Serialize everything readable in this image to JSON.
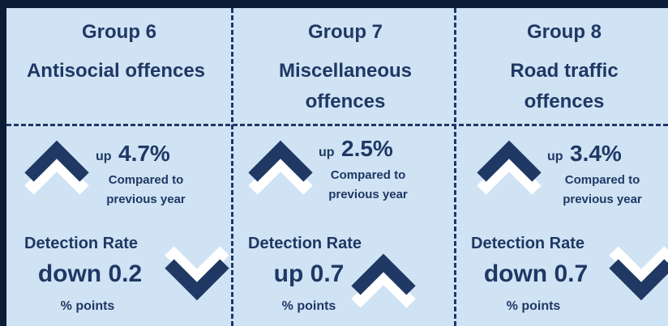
{
  "groups": [
    {
      "group": "Group 6",
      "title": [
        "Antisocial offences"
      ],
      "change_direction": "up",
      "change": "4.7%",
      "comparison": [
        "Compared to",
        "previous year"
      ],
      "detection_label": "Detection Rate",
      "detection_change": "down 0.2",
      "detection_unit": "% points"
    },
    {
      "group": "Group 7",
      "title": [
        "Miscellaneous",
        "offences"
      ],
      "change_direction": "up",
      "change": "2.5%",
      "comparison": [
        "Compared to",
        "previous year"
      ],
      "detection_label": "Detection Rate",
      "detection_change": "up 0.7",
      "detection_unit": "% points"
    },
    {
      "group": "Group 8",
      "title": [
        "Road traffic",
        "offences"
      ],
      "change_direction": "up",
      "change": "3.4%",
      "comparison": [
        "Compared to",
        "previous year"
      ],
      "detection_label": "Detection Rate",
      "detection_change": "down 0.7",
      "detection_unit": "% points"
    }
  ]
}
